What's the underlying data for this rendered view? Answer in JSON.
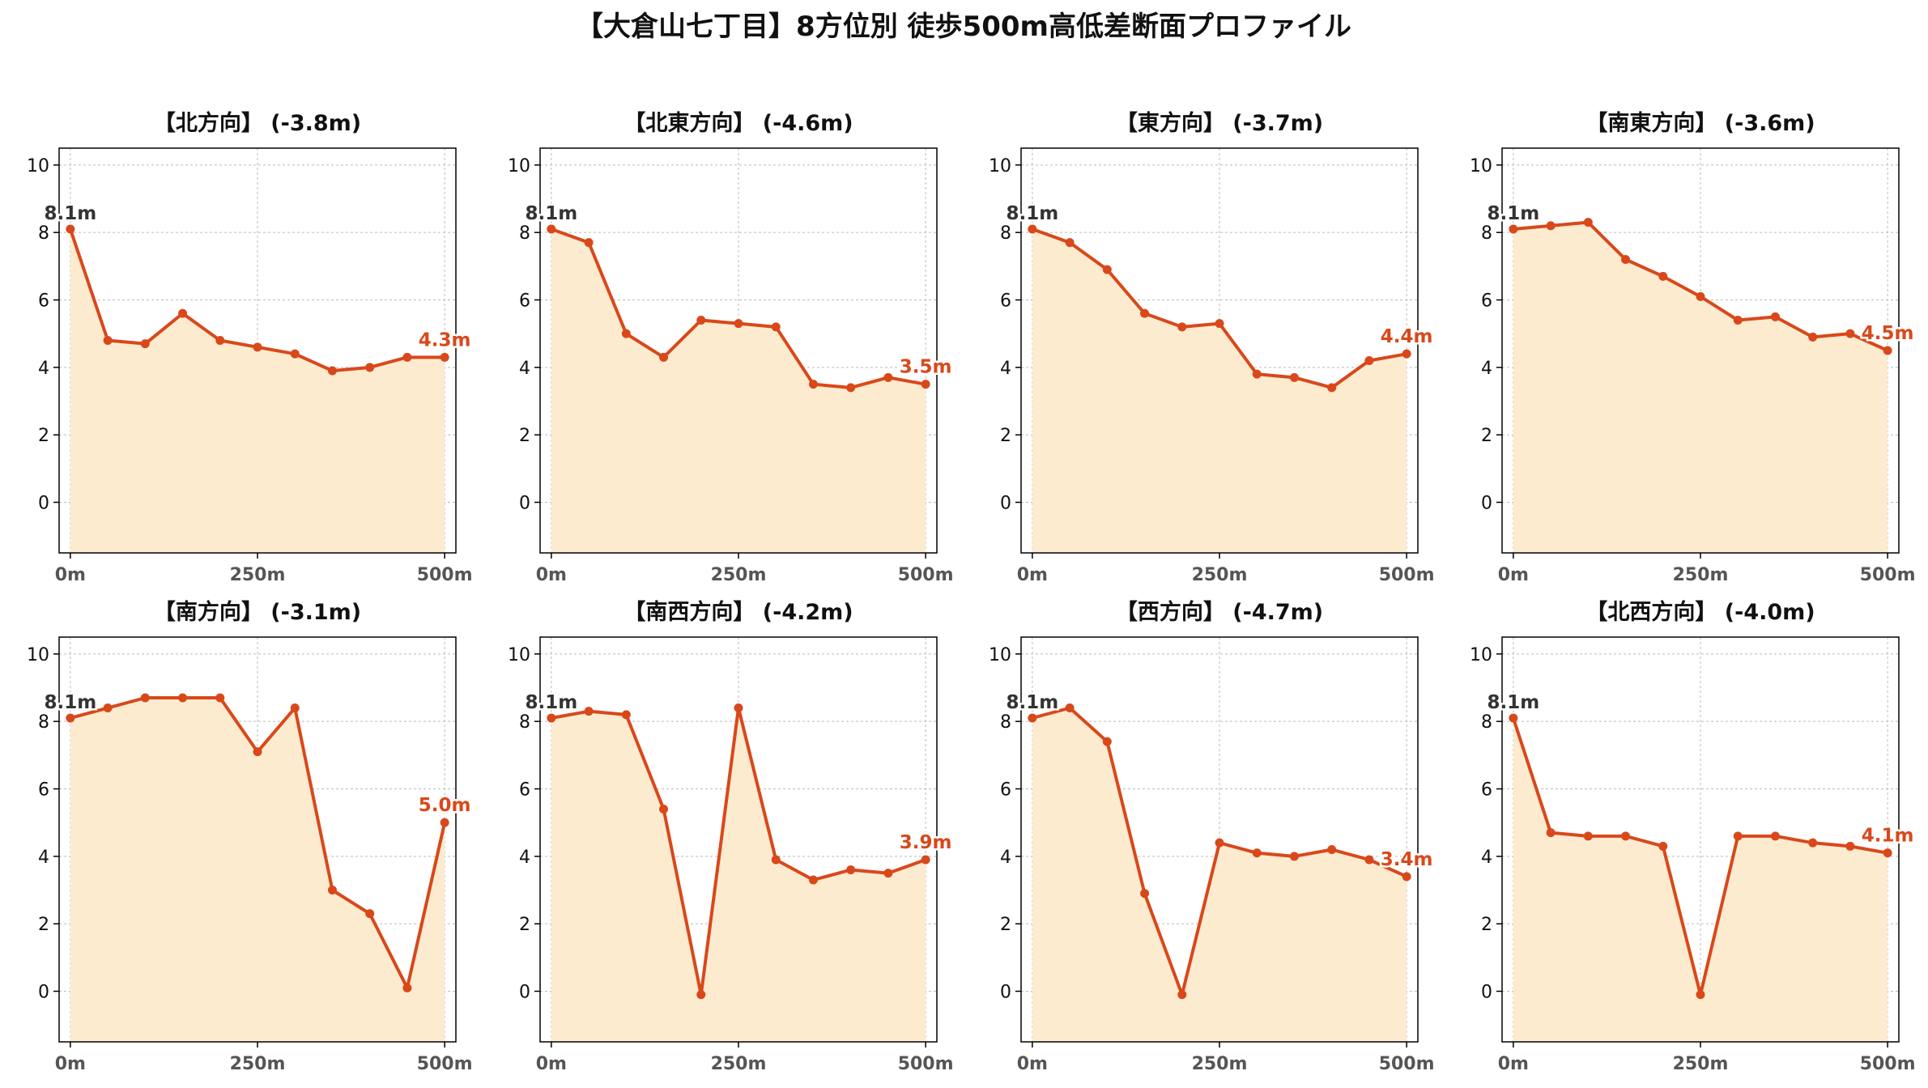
{
  "title": "【大倉山七丁目】8方位別 徒歩500m高低差断面プロファイル",
  "colors": {
    "line": "#d9481a",
    "fill": "#fdebd0",
    "start_label": "#333333",
    "end_label": "#d9481a",
    "grid": "#bbbbbb"
  },
  "chart_data": [
    {
      "type": "area",
      "title": "【北方向】 (-3.8m)",
      "x": [
        0,
        50,
        100,
        150,
        200,
        250,
        300,
        350,
        400,
        450,
        500
      ],
      "values": [
        8.1,
        4.8,
        4.7,
        5.6,
        4.8,
        4.6,
        4.4,
        3.9,
        4.0,
        4.3,
        4.3
      ],
      "start_label": "8.1m",
      "end_label": "4.3m",
      "xticks": [
        0,
        250,
        500
      ],
      "xtick_labels": [
        "0m",
        "250m",
        "500m"
      ],
      "yticks": [
        0,
        2,
        4,
        6,
        8,
        10
      ],
      "ylim": [
        -1.5,
        10.5
      ],
      "xlim": [
        -15,
        515
      ],
      "grid": true
    },
    {
      "type": "area",
      "title": "【北東方向】 (-4.6m)",
      "x": [
        0,
        50,
        100,
        150,
        200,
        250,
        300,
        350,
        400,
        450,
        500
      ],
      "values": [
        8.1,
        7.7,
        5.0,
        4.3,
        5.4,
        5.3,
        5.2,
        3.5,
        3.4,
        3.7,
        3.5
      ],
      "start_label": "8.1m",
      "end_label": "3.5m",
      "xticks": [
        0,
        250,
        500
      ],
      "xtick_labels": [
        "0m",
        "250m",
        "500m"
      ],
      "yticks": [
        0,
        2,
        4,
        6,
        8,
        10
      ],
      "ylim": [
        -1.5,
        10.5
      ],
      "xlim": [
        -15,
        515
      ],
      "grid": true
    },
    {
      "type": "area",
      "title": "【東方向】 (-3.7m)",
      "x": [
        0,
        50,
        100,
        150,
        200,
        250,
        300,
        350,
        400,
        450,
        500
      ],
      "values": [
        8.1,
        7.7,
        6.9,
        5.6,
        5.2,
        5.3,
        3.8,
        3.7,
        3.4,
        4.2,
        4.4
      ],
      "start_label": "8.1m",
      "end_label": "4.4m",
      "xticks": [
        0,
        250,
        500
      ],
      "xtick_labels": [
        "0m",
        "250m",
        "500m"
      ],
      "yticks": [
        0,
        2,
        4,
        6,
        8,
        10
      ],
      "ylim": [
        -1.5,
        10.5
      ],
      "xlim": [
        -15,
        515
      ],
      "grid": true
    },
    {
      "type": "area",
      "title": "【南東方向】 (-3.6m)",
      "x": [
        0,
        50,
        100,
        150,
        200,
        250,
        300,
        350,
        400,
        450,
        500
      ],
      "values": [
        8.1,
        8.2,
        8.3,
        7.2,
        6.7,
        6.1,
        5.4,
        5.5,
        4.9,
        5.0,
        4.5
      ],
      "start_label": "8.1m",
      "end_label": "4.5m",
      "xticks": [
        0,
        250,
        500
      ],
      "xtick_labels": [
        "0m",
        "250m",
        "500m"
      ],
      "yticks": [
        0,
        2,
        4,
        6,
        8,
        10
      ],
      "ylim": [
        -1.5,
        10.5
      ],
      "xlim": [
        -15,
        515
      ],
      "grid": true
    },
    {
      "type": "area",
      "title": "【南方向】 (-3.1m)",
      "x": [
        0,
        50,
        100,
        150,
        200,
        250,
        300,
        350,
        400,
        450,
        500
      ],
      "values": [
        8.1,
        8.4,
        8.7,
        8.7,
        8.7,
        7.1,
        8.4,
        3.0,
        2.3,
        0.1,
        5.0
      ],
      "start_label": "8.1m",
      "end_label": "5.0m",
      "xticks": [
        0,
        250,
        500
      ],
      "xtick_labels": [
        "0m",
        "250m",
        "500m"
      ],
      "yticks": [
        0,
        2,
        4,
        6,
        8,
        10
      ],
      "ylim": [
        -1.5,
        10.5
      ],
      "xlim": [
        -15,
        515
      ],
      "grid": true
    },
    {
      "type": "area",
      "title": "【南西方向】 (-4.2m)",
      "x": [
        0,
        50,
        100,
        150,
        200,
        250,
        300,
        350,
        400,
        450,
        500
      ],
      "values": [
        8.1,
        8.3,
        8.2,
        5.4,
        -0.1,
        8.4,
        3.9,
        3.3,
        3.6,
        3.5,
        3.9
      ],
      "start_label": "8.1m",
      "end_label": "3.9m",
      "xticks": [
        0,
        250,
        500
      ],
      "xtick_labels": [
        "0m",
        "250m",
        "500m"
      ],
      "yticks": [
        0,
        2,
        4,
        6,
        8,
        10
      ],
      "ylim": [
        -1.5,
        10.5
      ],
      "xlim": [
        -15,
        515
      ],
      "grid": true
    },
    {
      "type": "area",
      "title": "【西方向】 (-4.7m)",
      "x": [
        0,
        50,
        100,
        150,
        200,
        250,
        300,
        350,
        400,
        450,
        500
      ],
      "values": [
        8.1,
        8.4,
        7.4,
        2.9,
        -0.1,
        4.4,
        4.1,
        4.0,
        4.2,
        3.9,
        3.4
      ],
      "start_label": "8.1m",
      "end_label": "3.4m",
      "xticks": [
        0,
        250,
        500
      ],
      "xtick_labels": [
        "0m",
        "250m",
        "500m"
      ],
      "yticks": [
        0,
        2,
        4,
        6,
        8,
        10
      ],
      "ylim": [
        -1.5,
        10.5
      ],
      "xlim": [
        -15,
        515
      ],
      "grid": true
    },
    {
      "type": "area",
      "title": "【北西方向】 (-4.0m)",
      "x": [
        0,
        50,
        100,
        150,
        200,
        250,
        300,
        350,
        400,
        450,
        500
      ],
      "values": [
        8.1,
        4.7,
        4.6,
        4.6,
        4.3,
        -0.1,
        4.6,
        4.6,
        4.4,
        4.3,
        4.1
      ],
      "start_label": "8.1m",
      "end_label": "4.1m",
      "xticks": [
        0,
        250,
        500
      ],
      "xtick_labels": [
        "0m",
        "250m",
        "500m"
      ],
      "yticks": [
        0,
        2,
        4,
        6,
        8,
        10
      ],
      "ylim": [
        -1.5,
        10.5
      ],
      "xlim": [
        -15,
        515
      ],
      "grid": true
    }
  ]
}
